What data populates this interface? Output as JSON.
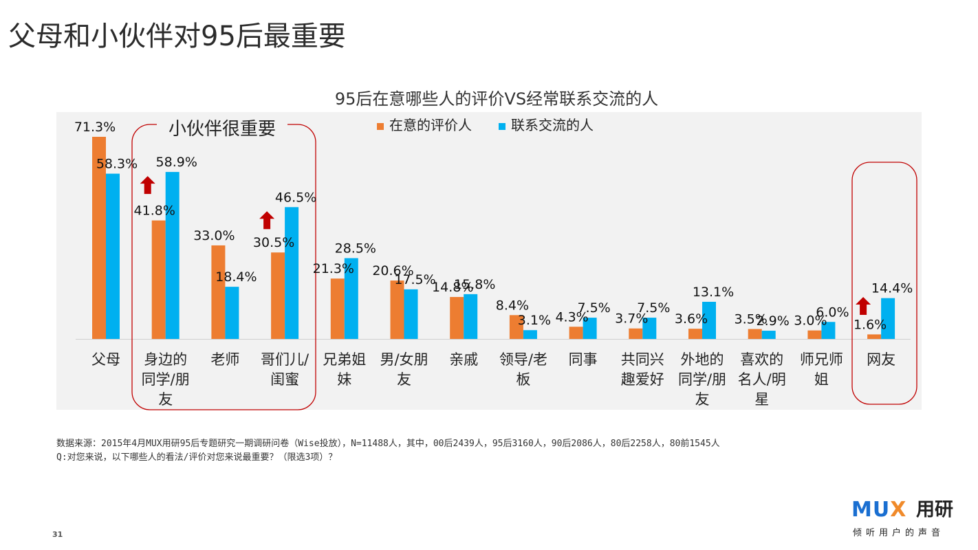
{
  "page": {
    "title": "父母和小伙伴对95后最重要",
    "page_number": "31"
  },
  "footnote": {
    "source": "数据来源：2015年4月MUX用研95后专题研究一期调研问卷（Wise投放），N=11488人，其中，00后2439人，95后3160人，90后2086人，80后2258人，80前1545人",
    "question": "Q:对您来说，以下哪些人的看法/评价对您来说最重要？（限选3项）？"
  },
  "annotations": {
    "group_label": "小伙伴很重要"
  },
  "logo": {
    "mark_blue": "MU",
    "mark_orange": "X",
    "name": "用研",
    "slogan": "倾听用户的声音"
  },
  "colors": {
    "series1": "#ed7d31",
    "series2": "#00b0f0",
    "highlight_box": "#c00000",
    "arrow": "#c00000"
  },
  "chart_data": {
    "type": "bar",
    "title": "95后在意哪些人的评价VS经常联系交流的人",
    "categories": [
      [
        "父母"
      ],
      [
        "身边的",
        "同学/朋",
        "友"
      ],
      [
        "老师"
      ],
      [
        "哥们儿/",
        "闺蜜"
      ],
      [
        "兄弟姐",
        "妹"
      ],
      [
        "男/女朋",
        "友"
      ],
      [
        "亲戚"
      ],
      [
        "领导/老",
        "板"
      ],
      [
        "同事"
      ],
      [
        "共同兴",
        "趣爱好"
      ],
      [
        "外地的",
        "同学/朋",
        "友"
      ],
      [
        "喜欢的",
        "名人/明",
        "星"
      ],
      [
        "师兄师",
        "姐"
      ],
      [
        "网友"
      ]
    ],
    "series": [
      {
        "name": "在意的评价人",
        "values": [
          71.3,
          41.8,
          33.0,
          30.5,
          21.3,
          20.6,
          14.8,
          8.4,
          4.3,
          3.7,
          3.6,
          3.5,
          3.0,
          1.6
        ],
        "labels": [
          "71.3%",
          "41.8%",
          "33.0%",
          "30.5%",
          "21.3%",
          "20.6%",
          "14.8%",
          "8.4%",
          "4.3%",
          "3.7%",
          "3.6%",
          "3.5%",
          "3.0%",
          "1.6%"
        ]
      },
      {
        "name": "联系交流的人",
        "values": [
          58.3,
          58.9,
          18.4,
          46.5,
          28.5,
          17.5,
          15.8,
          3.1,
          7.5,
          7.5,
          13.1,
          2.9,
          6.0,
          14.4
        ],
        "labels": [
          "58.3%",
          "58.9%",
          "18.4%",
          "46.5%",
          "28.5%",
          "17.5%",
          "15.8%",
          "3.1%",
          "7.5%",
          "7.5%",
          "13.1%",
          "2.9%",
          "6.0%",
          "14.4%"
        ]
      }
    ],
    "ylim": [
      0,
      75
    ],
    "grid": false,
    "legend": "top-center",
    "highlight_groups": [
      [
        1,
        3
      ],
      [
        13,
        13
      ]
    ],
    "arrow_categories": [
      1,
      3,
      13
    ]
  }
}
